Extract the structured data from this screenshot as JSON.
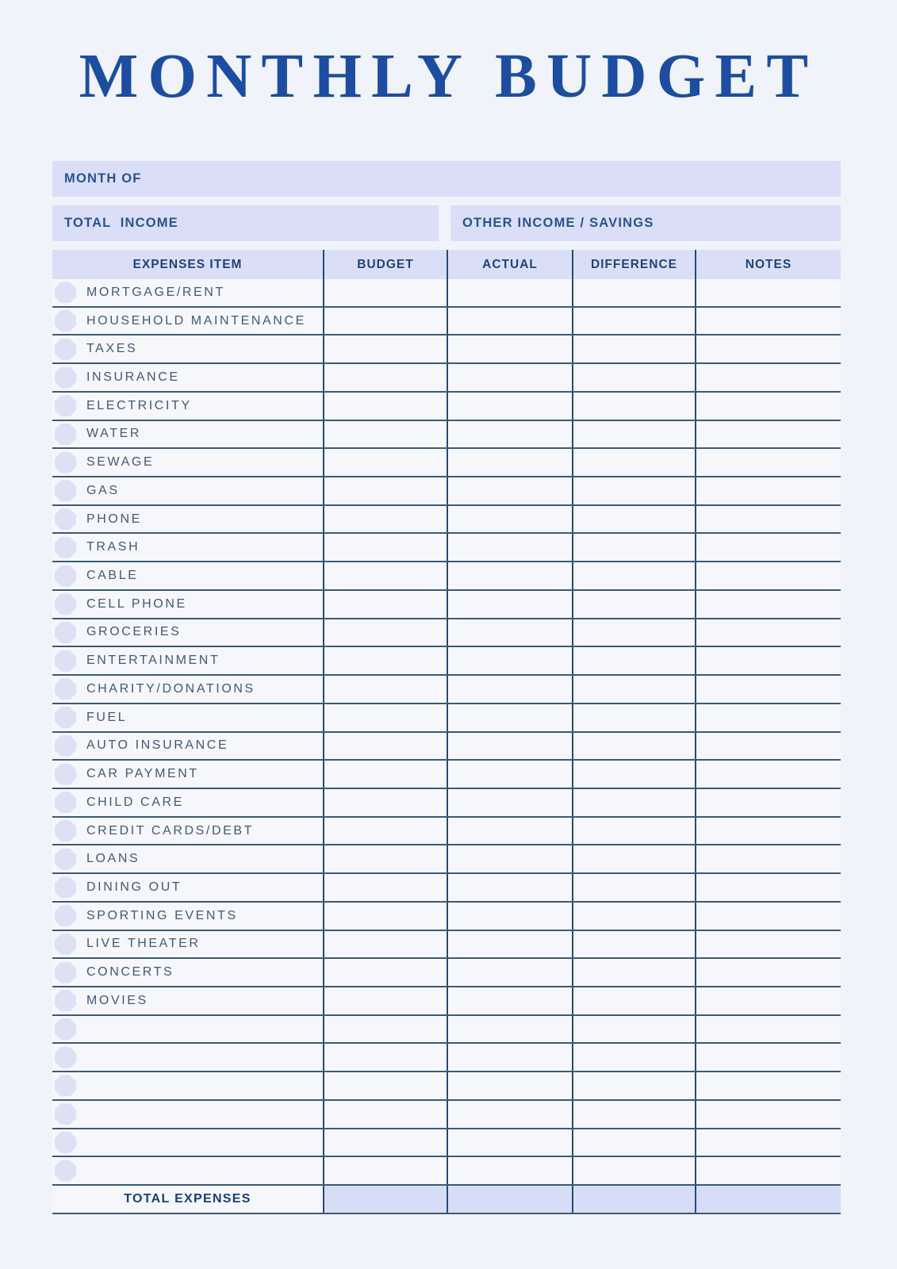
{
  "page": {
    "title": "MONTHLY BUDGET"
  },
  "fields": {
    "month_of_label": "MONTH OF",
    "total_income_label": "TOTAL  INCOME",
    "other_income_label": "OTHER INCOME / SAVINGS"
  },
  "table": {
    "headers": [
      "EXPENSES ITEM",
      "BUDGET",
      "ACTUAL",
      "DIFFERENCE",
      "NOTES"
    ],
    "rows": [
      "MORTGAGE/RENT",
      "HOUSEHOLD MAINTENANCE",
      "TAXES",
      "INSURANCE",
      "ELECTRICITY",
      "WATER",
      "SEWAGE",
      "GAS",
      "PHONE",
      "TRASH",
      "CABLE",
      "CELL PHONE",
      "GROCERIES",
      "ENTERTAINMENT",
      "CHARITY/DONATIONS",
      "FUEL",
      "AUTO INSURANCE",
      "CAR PAYMENT",
      "CHILD CARE",
      "CREDIT CARDS/DEBT",
      "LOANS",
      "DINING OUT",
      "SPORTING EVENTS",
      "LIVE THEATER",
      "CONCERTS",
      "MOVIES",
      "",
      "",
      "",
      "",
      "",
      ""
    ],
    "footer_label": "TOTAL EXPENSES"
  },
  "colors": {
    "page_background": "#f0f3f9",
    "row_background": "#f5f7fb",
    "accent_lavender": "#dadff7",
    "bullet_lavender": "#dce1f6",
    "title_blue": "#1c4da0",
    "label_blue": "#2a5191",
    "header_text_blue": "#1f4377",
    "item_text_slate": "#44596f",
    "horizontal_line": "#3d5a73",
    "vertical_line": "#28497a"
  }
}
